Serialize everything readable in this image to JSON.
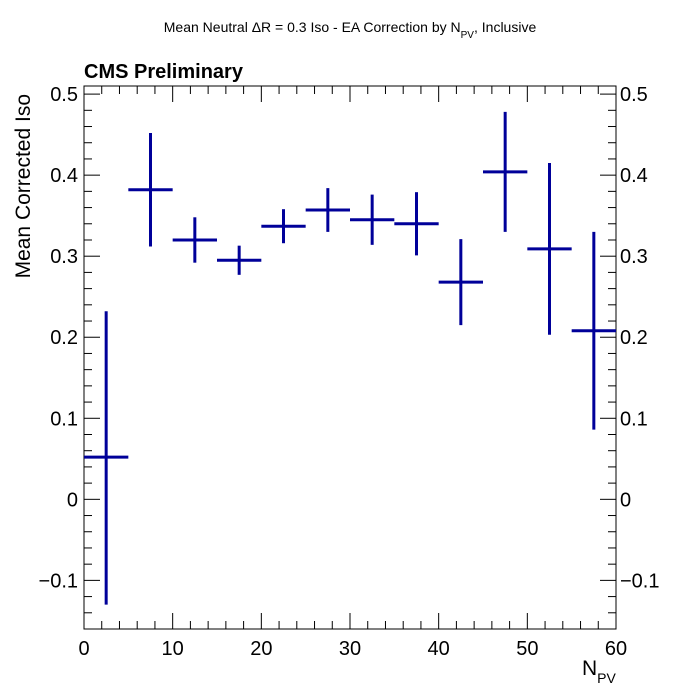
{
  "chart_data": {
    "type": "scatter",
    "title_pre": "Mean Neutral ΔR = 0.3 Iso - EA Correction by N",
    "title_sub": "PV",
    "title_post": ", Inclusive",
    "label": "CMS Preliminary",
    "xlabel_main": "N",
    "xlabel_sub": "PV",
    "ylabel": "Mean Corrected Iso",
    "xlim": [
      0,
      60
    ],
    "ylim": [
      -0.16,
      0.51
    ],
    "x_major_ticks": [
      0,
      10,
      20,
      30,
      40,
      50,
      60
    ],
    "x_tick_labels": [
      "0",
      "10",
      "20",
      "30",
      "40",
      "50",
      "60"
    ],
    "y_major_ticks": [
      -0.1,
      0,
      0.1,
      0.2,
      0.3,
      0.4,
      0.5
    ],
    "y_tick_labels": [
      "−0.1",
      "0",
      "0.1",
      "0.2",
      "0.3",
      "0.4",
      "0.5"
    ],
    "color": "#000099",
    "series": [
      {
        "points": [
          {
            "x": 2.5,
            "xerr": 2.5,
            "y": 0.052,
            "yerr_low": 0.182,
            "yerr_high": 0.18
          },
          {
            "x": 7.5,
            "xerr": 2.5,
            "y": 0.382,
            "yerr_low": 0.07,
            "yerr_high": 0.07
          },
          {
            "x": 12.5,
            "xerr": 2.5,
            "y": 0.32,
            "yerr_low": 0.028,
            "yerr_high": 0.028
          },
          {
            "x": 17.5,
            "xerr": 2.5,
            "y": 0.295,
            "yerr_low": 0.018,
            "yerr_high": 0.018
          },
          {
            "x": 22.5,
            "xerr": 2.5,
            "y": 0.337,
            "yerr_low": 0.021,
            "yerr_high": 0.021
          },
          {
            "x": 27.5,
            "xerr": 2.5,
            "y": 0.357,
            "yerr_low": 0.027,
            "yerr_high": 0.027
          },
          {
            "x": 32.5,
            "xerr": 2.5,
            "y": 0.345,
            "yerr_low": 0.031,
            "yerr_high": 0.031
          },
          {
            "x": 37.5,
            "xerr": 2.5,
            "y": 0.34,
            "yerr_low": 0.039,
            "yerr_high": 0.039
          },
          {
            "x": 42.5,
            "xerr": 2.5,
            "y": 0.268,
            "yerr_low": 0.053,
            "yerr_high": 0.053
          },
          {
            "x": 47.5,
            "xerr": 2.5,
            "y": 0.404,
            "yerr_low": 0.074,
            "yerr_high": 0.074
          },
          {
            "x": 52.5,
            "xerr": 2.5,
            "y": 0.309,
            "yerr_low": 0.106,
            "yerr_high": 0.106
          },
          {
            "x": 57.5,
            "xerr": 2.5,
            "y": 0.208,
            "yerr_low": 0.122,
            "yerr_high": 0.122
          }
        ]
      }
    ]
  }
}
